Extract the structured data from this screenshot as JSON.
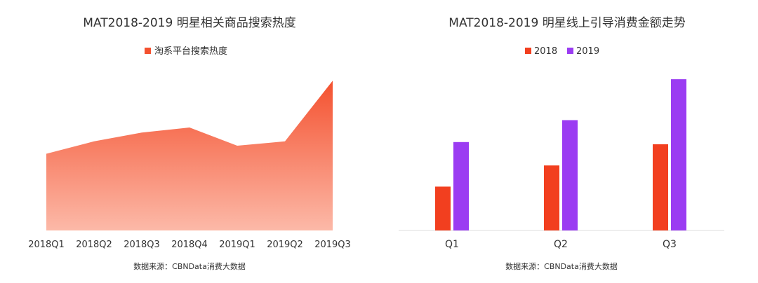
{
  "colors": {
    "area_top": "#f4512f",
    "area_bottom": "#fcb9a8",
    "bar_2018": "#f23f1f",
    "bar_2019": "#9b3cf2",
    "text": "#333333",
    "axis": "#dddddd"
  },
  "chart_data": [
    {
      "type": "area",
      "title": "MAT2018-2019 明星相关商品搜索热度",
      "categories": [
        "2018Q1",
        "2018Q2",
        "2018Q3",
        "2018Q4",
        "2019Q1",
        "2019Q2",
        "2019Q3"
      ],
      "series": [
        {
          "name": "淘系平台搜索热度",
          "values": [
            105,
            122,
            134,
            141,
            116,
            122,
            205
          ]
        }
      ],
      "ylim": [
        0,
        210
      ],
      "legend": "top-center",
      "grid": false,
      "source": "数据来源：CBNData消费大数据"
    },
    {
      "type": "bar",
      "title": "MAT2018-2019 明星线上引导消费金额走势",
      "categories": [
        "Q1",
        "Q2",
        "Q3"
      ],
      "series": [
        {
          "name": "2018",
          "values": [
            60,
            89,
            118
          ]
        },
        {
          "name": "2019",
          "values": [
            121,
            151,
            207
          ]
        }
      ],
      "ylim": [
        0,
        210
      ],
      "legend": "top-center",
      "grid": false,
      "source": "数据来源：CBNData消费大数据"
    }
  ]
}
